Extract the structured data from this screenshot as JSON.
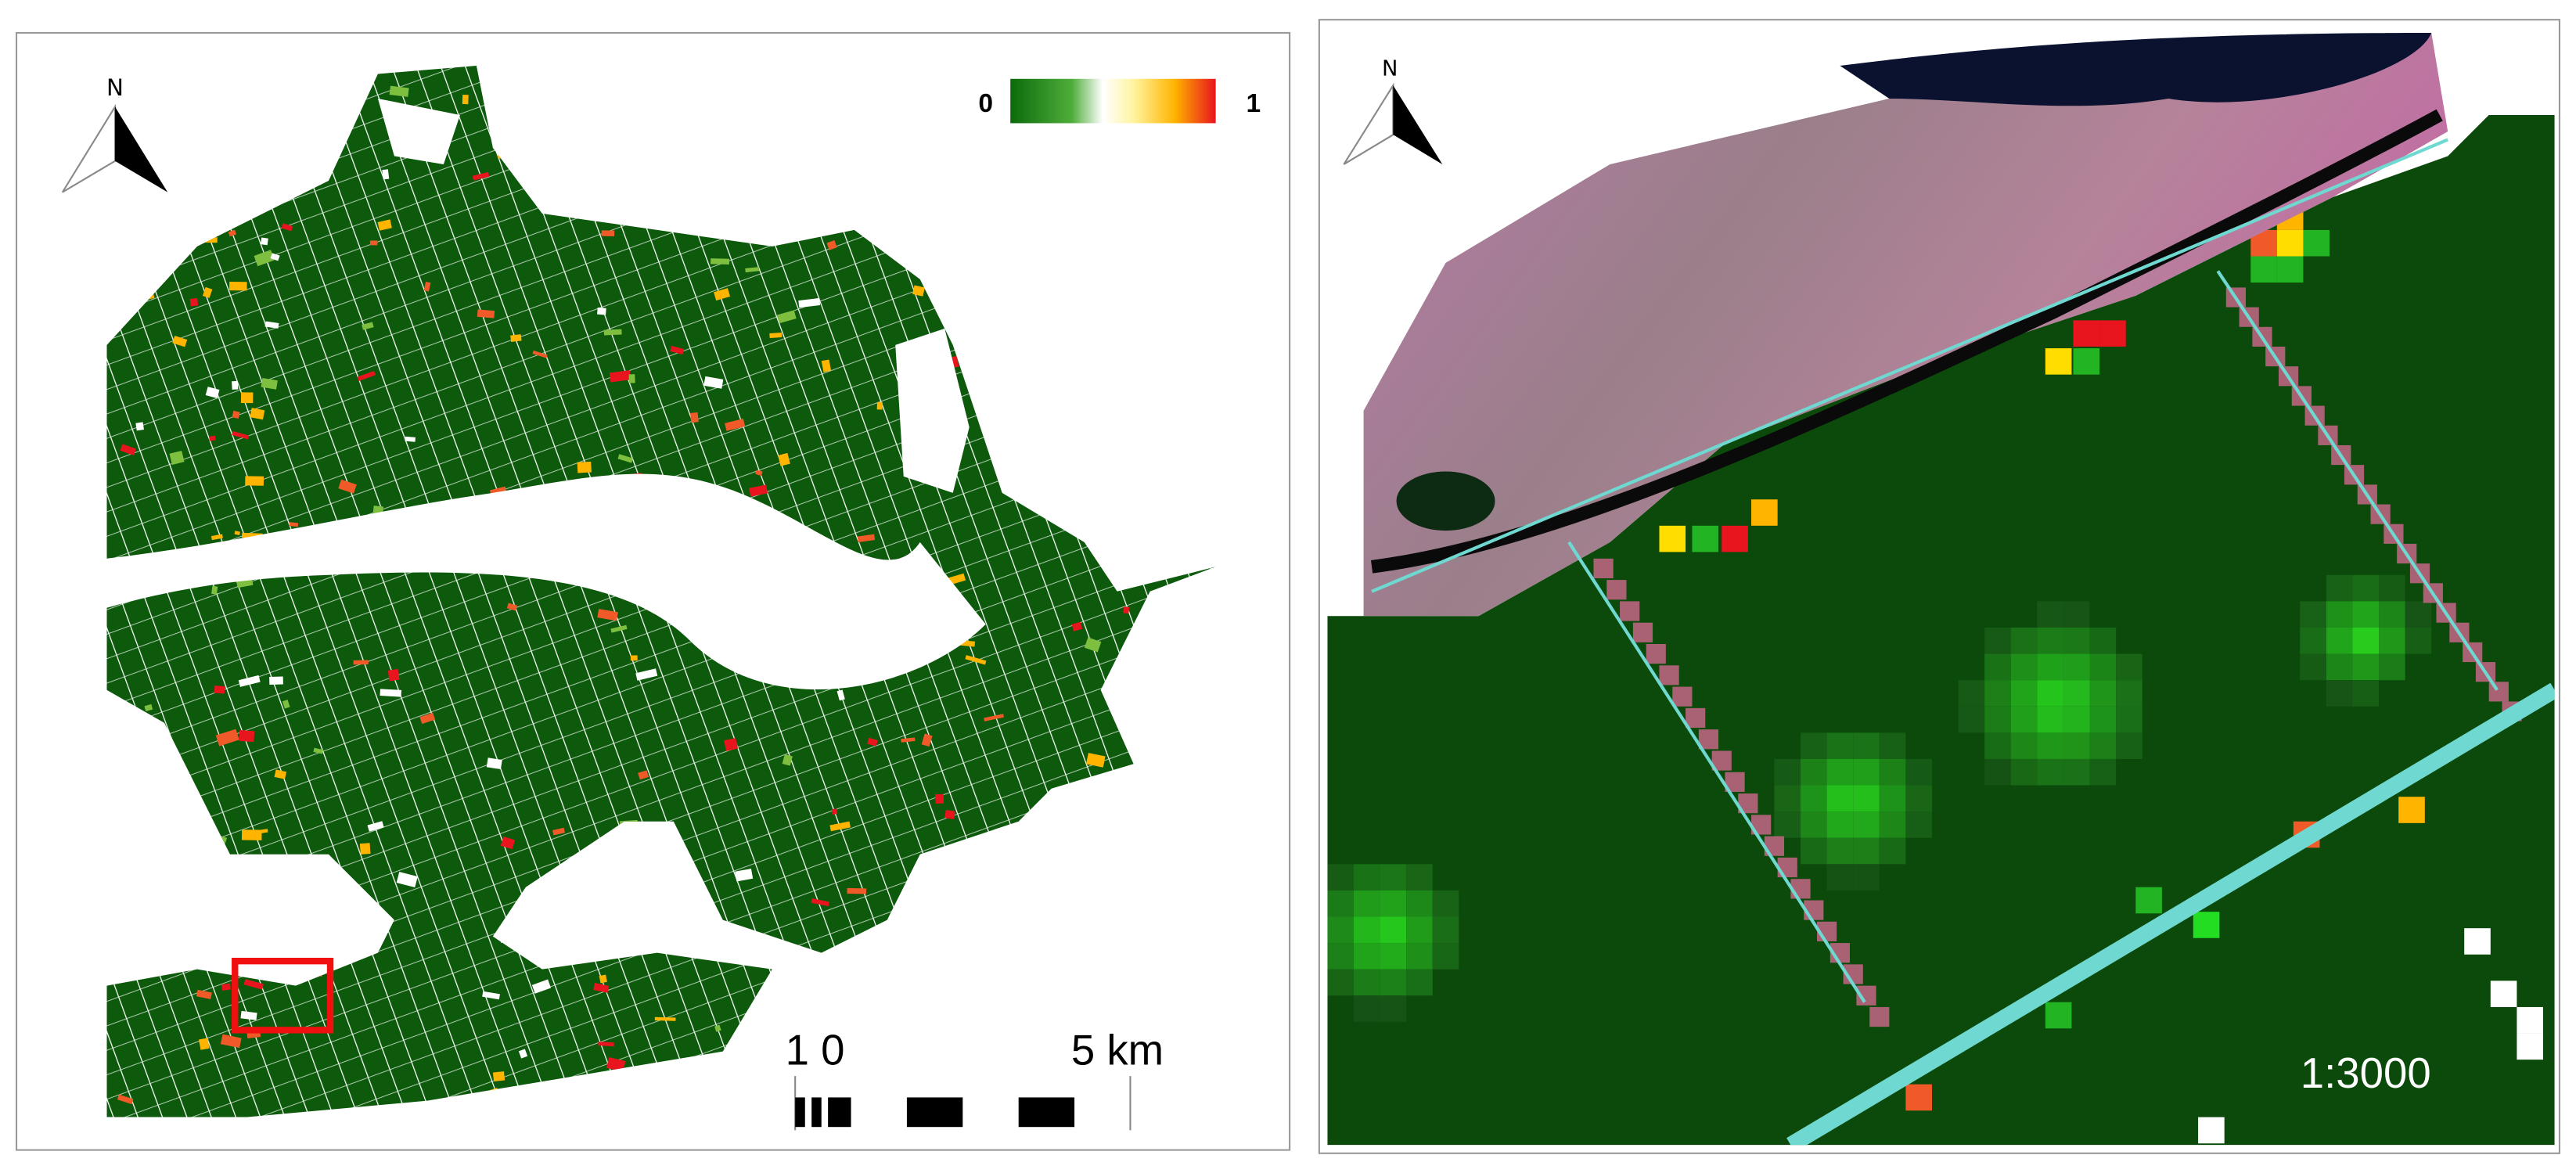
{
  "left_panel": {
    "north_label": "N",
    "legend": {
      "min_label": "0",
      "max_label": "1"
    },
    "scale_bar": {
      "start_label": "1 0",
      "end_label": "5 km"
    }
  },
  "right_panel": {
    "north_label": "N",
    "scale_label": "1:3000"
  }
}
